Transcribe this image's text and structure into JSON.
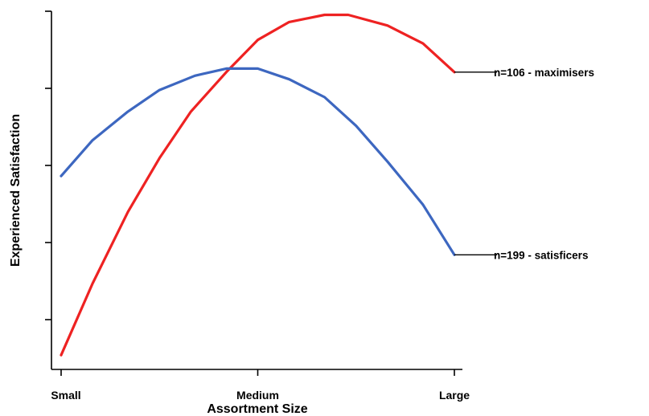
{
  "chart_data": {
    "type": "line",
    "title": "",
    "xlabel": "Assortment Size",
    "ylabel": "Experienced Satisfaction",
    "x_tick_labels": [
      "Small",
      "Medium",
      "Large"
    ],
    "x_range": [
      0,
      1
    ],
    "y_range": [
      0,
      1
    ],
    "series": [
      {
        "id": "maximisers",
        "name": "n=106  - maximisers",
        "color": "#ee2222",
        "points": [
          [
            0.0,
            0.04
          ],
          [
            0.08,
            0.24
          ],
          [
            0.17,
            0.44
          ],
          [
            0.25,
            0.59
          ],
          [
            0.33,
            0.72
          ],
          [
            0.42,
            0.83
          ],
          [
            0.5,
            0.92
          ],
          [
            0.58,
            0.97
          ],
          [
            0.67,
            0.99
          ],
          [
            0.73,
            0.99
          ],
          [
            0.83,
            0.96
          ],
          [
            0.92,
            0.91
          ],
          [
            1.0,
            0.83
          ]
        ]
      },
      {
        "id": "satisfiers",
        "name": "n=199  - satisficers",
        "color": "#3d67c0",
        "points": [
          [
            0.0,
            0.54
          ],
          [
            0.08,
            0.64
          ],
          [
            0.17,
            0.72
          ],
          [
            0.25,
            0.78
          ],
          [
            0.34,
            0.82
          ],
          [
            0.42,
            0.84
          ],
          [
            0.5,
            0.84
          ],
          [
            0.58,
            0.81
          ],
          [
            0.67,
            0.76
          ],
          [
            0.75,
            0.68
          ],
          [
            0.83,
            0.58
          ],
          [
            0.92,
            0.46
          ],
          [
            1.0,
            0.32
          ]
        ]
      }
    ],
    "grid": false,
    "legend": "right, at line ends"
  }
}
